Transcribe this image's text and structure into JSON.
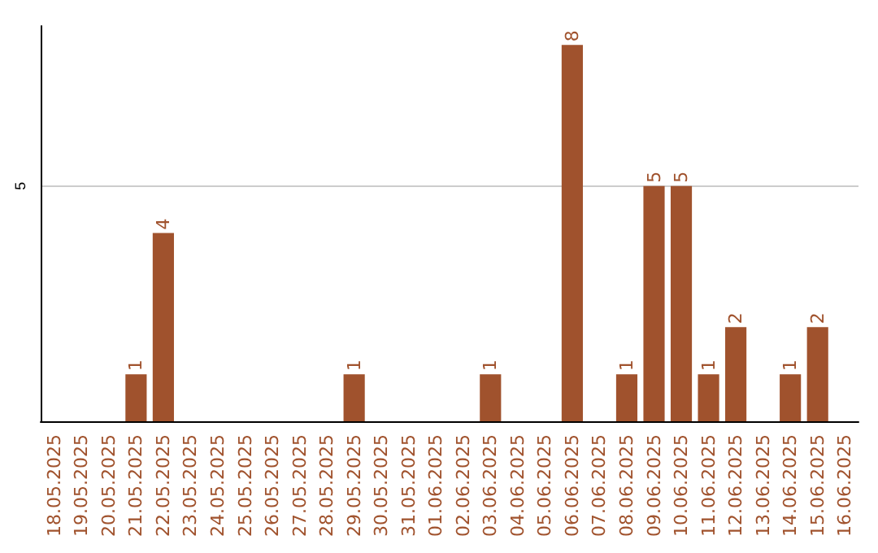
{
  "chart_data": {
    "type": "bar",
    "categories": [
      "18.05.2025",
      "19.05.2025",
      "20.05.2025",
      "21.05.2025",
      "22.05.2025",
      "23.05.2025",
      "24.05.2025",
      "25.05.2025",
      "26.05.2025",
      "27.05.2025",
      "28.05.2025",
      "29.05.2025",
      "30.05.2025",
      "31.05.2025",
      "01.06.2025",
      "02.06.2025",
      "03.06.2025",
      "04.06.2025",
      "05.06.2025",
      "06.06.2025",
      "07.06.2025",
      "08.06.2025",
      "09.06.2025",
      "10.06.2025",
      "11.06.2025",
      "12.06.2025",
      "13.06.2025",
      "14.06.2025",
      "15.06.2025",
      "16.06.2025"
    ],
    "values": [
      0,
      0,
      0,
      1,
      4,
      0,
      0,
      0,
      0,
      0,
      0,
      1,
      0,
      0,
      0,
      0,
      1,
      0,
      0,
      8,
      0,
      1,
      5,
      5,
      1,
      2,
      0,
      1,
      2,
      0
    ],
    "value_labels": [
      null,
      null,
      null,
      "1",
      "4",
      null,
      null,
      null,
      null,
      null,
      null,
      "1",
      null,
      null,
      null,
      null,
      "1",
      null,
      null,
      "8",
      null,
      "1",
      "5",
      "5",
      "1",
      "2",
      null,
      "1",
      "2",
      null
    ],
    "color": "#a0522d",
    "ylim": [
      0,
      8.4
    ],
    "yticks": [
      5
    ],
    "grid": "y"
  }
}
